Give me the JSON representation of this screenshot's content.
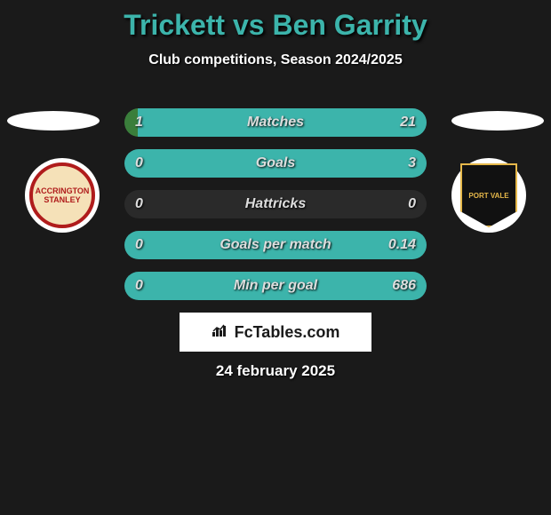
{
  "title": {
    "player_a": "Trickett",
    "vs": "vs",
    "player_b": "Ben Garrity",
    "color": "#3cb4ab"
  },
  "subtitle": "Club competitions, Season 2024/2025",
  "background_color": "#1a1a1a",
  "teams": {
    "left_crest": "ACCRINGTON STANLEY",
    "right_crest": "PORT VALE"
  },
  "bars": {
    "track_bg": "#2a2a2a",
    "left_color": "#3a7e3b",
    "right_color": "#3cb4ab",
    "rows": [
      {
        "label": "Matches",
        "left_val": "1",
        "right_val": "21",
        "left_pct": 4.5,
        "max": 22
      },
      {
        "label": "Goals",
        "left_val": "0",
        "right_val": "3",
        "left_pct": 0,
        "max": 3
      },
      {
        "label": "Hattricks",
        "left_val": "0",
        "right_val": "0",
        "left_pct": 0,
        "max": 0
      },
      {
        "label": "Goals per match",
        "left_val": "0",
        "right_val": "0.14",
        "left_pct": 0,
        "max": 0.14
      },
      {
        "label": "Min per goal",
        "left_val": "0",
        "right_val": "686",
        "left_pct": 0,
        "max": 686
      }
    ]
  },
  "branding": "FcTables.com",
  "date": "24 february 2025",
  "typography": {
    "title_fontsize": 32,
    "subtitle_fontsize": 16,
    "bar_label_fontsize": 16,
    "date_fontsize": 17
  }
}
